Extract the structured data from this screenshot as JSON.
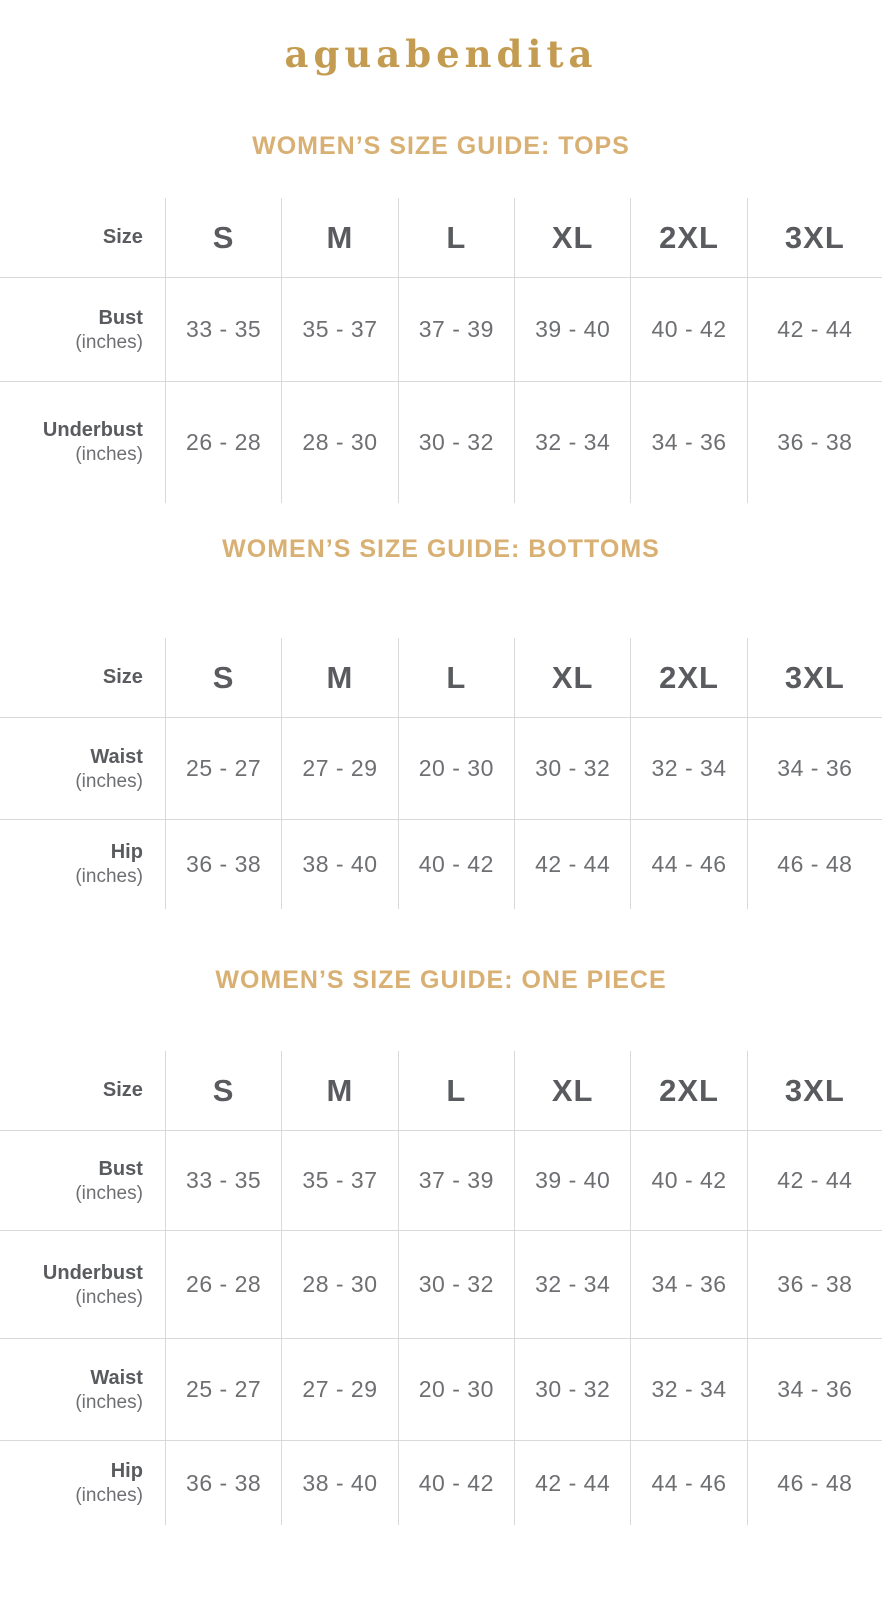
{
  "brand": {
    "name": "aguabendita"
  },
  "colors": {
    "logo_gold": "#c49c51",
    "heading_gold": "#d9b073",
    "text_dark": "#5a5b5e",
    "text_gray": "#6e6f72",
    "table_border": "#d9d9d9",
    "background": "#ffffff"
  },
  "sections": [
    {
      "heading": "WOMEN’S SIZE GUIDE: TOPS",
      "corner_label": "Size",
      "sizes": [
        "S",
        "M",
        "L",
        "XL",
        "2XL",
        "3XL"
      ],
      "rows": [
        {
          "label": "Bust",
          "unit": "(inches)",
          "values": [
            "33 - 35",
            "35 - 37",
            "37 - 39",
            "39 - 40",
            "40 - 42",
            "42 - 44"
          ]
        },
        {
          "label": "Underbust",
          "unit": "(inches)",
          "values": [
            "26 - 28",
            "28 - 30",
            "30 - 32",
            "32 - 34",
            "34 - 36",
            "36 - 38"
          ]
        }
      ]
    },
    {
      "heading": "WOMEN’S SIZE GUIDE: BOTTOMS",
      "corner_label": "Size",
      "sizes": [
        "S",
        "M",
        "L",
        "XL",
        "2XL",
        "3XL"
      ],
      "rows": [
        {
          "label": "Waist",
          "unit": "(inches)",
          "values": [
            "25 - 27",
            "27 - 29",
            "20 - 30",
            "30 - 32",
            "32 - 34",
            "34 - 36"
          ]
        },
        {
          "label": "Hip",
          "unit": "(inches)",
          "values": [
            "36 - 38",
            "38 - 40",
            "40 - 42",
            "42 - 44",
            "44 - 46",
            "46 - 48"
          ]
        }
      ]
    },
    {
      "heading": "WOMEN’S SIZE GUIDE: ONE PIECE",
      "corner_label": "Size",
      "sizes": [
        "S",
        "M",
        "L",
        "XL",
        "2XL",
        "3XL"
      ],
      "rows": [
        {
          "label": "Bust",
          "unit": "(inches)",
          "values": [
            "33 - 35",
            "35 - 37",
            "37 - 39",
            "39 - 40",
            "40 - 42",
            "42 - 44"
          ]
        },
        {
          "label": "Underbust",
          "unit": "(inches)",
          "values": [
            "26 - 28",
            "28 - 30",
            "30 - 32",
            "32 - 34",
            "34 - 36",
            "36 - 38"
          ]
        },
        {
          "label": "Waist",
          "unit": "(inches)",
          "values": [
            "25 - 27",
            "27 - 29",
            "20 - 30",
            "30 - 32",
            "32 - 34",
            "34 - 36"
          ]
        },
        {
          "label": "Hip",
          "unit": "(inches)",
          "values": [
            "36 - 38",
            "38 - 40",
            "40 - 42",
            "42 - 44",
            "44 - 46",
            "46 - 48"
          ]
        }
      ]
    }
  ]
}
